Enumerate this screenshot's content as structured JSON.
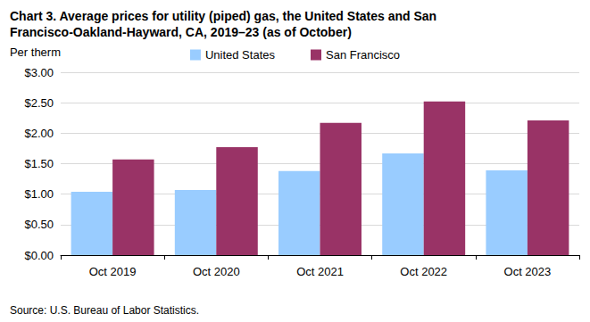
{
  "chart_data": {
    "type": "bar",
    "title": "Chart 3. Average prices for utility (piped) gas, the United States and San Francisco-Oakland-Hayward, CA, 2019–23 (as of October)",
    "y_label": "Per therm",
    "source": "Source: U.S. Bureau of Labor Statistics.",
    "categories": [
      "Oct 2019",
      "Oct 2020",
      "Oct 2021",
      "Oct 2022",
      "Oct 2023"
    ],
    "series": [
      {
        "name": "United States",
        "color": "#99ccff",
        "values": [
          1.04,
          1.07,
          1.38,
          1.67,
          1.39
        ]
      },
      {
        "name": "San Francisco",
        "color": "#993366",
        "values": [
          1.57,
          1.77,
          2.17,
          2.52,
          2.21
        ]
      }
    ],
    "ylim": [
      0,
      3
    ],
    "yticks": [
      {
        "value": 0,
        "label": "$0.00"
      },
      {
        "value": 0.5,
        "label": "$0.50"
      },
      {
        "value": 1,
        "label": "$1.00"
      },
      {
        "value": 1.5,
        "label": "$1.50"
      },
      {
        "value": 2,
        "label": "$2.00"
      },
      {
        "value": 2.5,
        "label": "$2.50"
      },
      {
        "value": 3,
        "label": "$3.00"
      }
    ],
    "grid": true,
    "legend": "top"
  }
}
